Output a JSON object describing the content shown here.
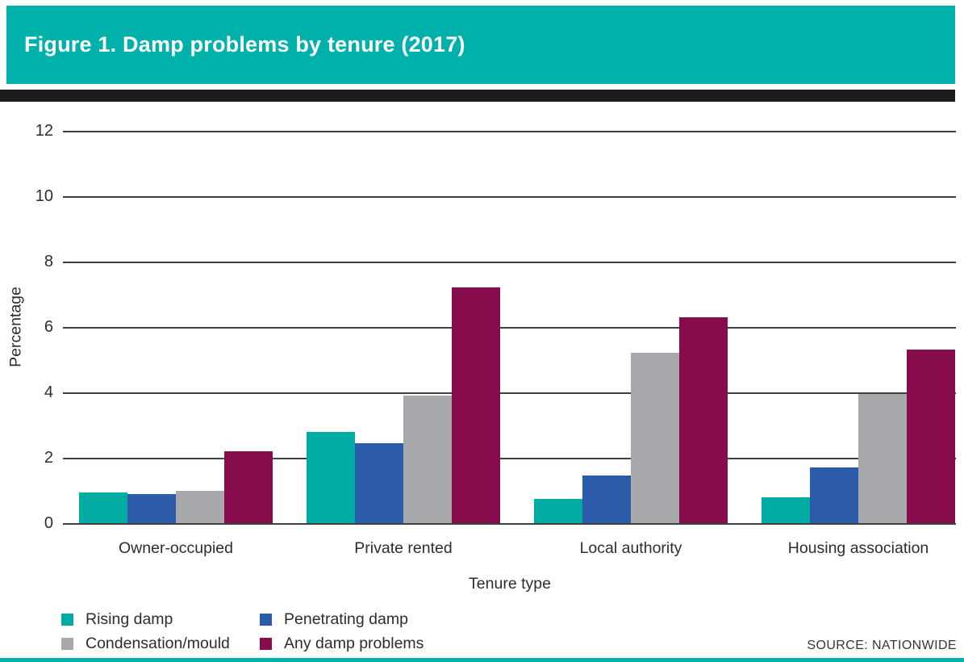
{
  "header": {
    "title": "Figure 1. Damp problems by tenure (2017)",
    "band_color": "#00B0AA",
    "rule_color": "#1d1b1b"
  },
  "chart_data": {
    "type": "bar",
    "title": "Figure 1. Damp problems by tenure (2017)",
    "categories": [
      "Owner-occupied",
      "Private rented",
      "Local authority",
      "Housing association"
    ],
    "series": [
      {
        "name": "Rising damp",
        "color": "#00ACA2",
        "values": [
          0.95,
          2.8,
          0.75,
          0.8
        ]
      },
      {
        "name": "Penetrating damp",
        "color": "#2C5CA9",
        "values": [
          0.9,
          2.45,
          1.45,
          1.7
        ]
      },
      {
        "name": "Condensation/mould",
        "color": "#A8A9AC",
        "values": [
          1.0,
          3.9,
          5.2,
          3.95
        ]
      },
      {
        "name": "Any damp problems",
        "color": "#860C4C",
        "values": [
          2.2,
          7.2,
          6.3,
          5.3
        ]
      }
    ],
    "xlabel": "Tenure type",
    "ylabel": "Percentage",
    "ylim": [
      0,
      12
    ],
    "yticks": [
      0,
      2,
      4,
      6,
      8,
      10,
      12
    ],
    "grid": true,
    "legend_position": "bottom-left"
  },
  "footer": {
    "source": "SOURCE: NATIONWIDE"
  }
}
